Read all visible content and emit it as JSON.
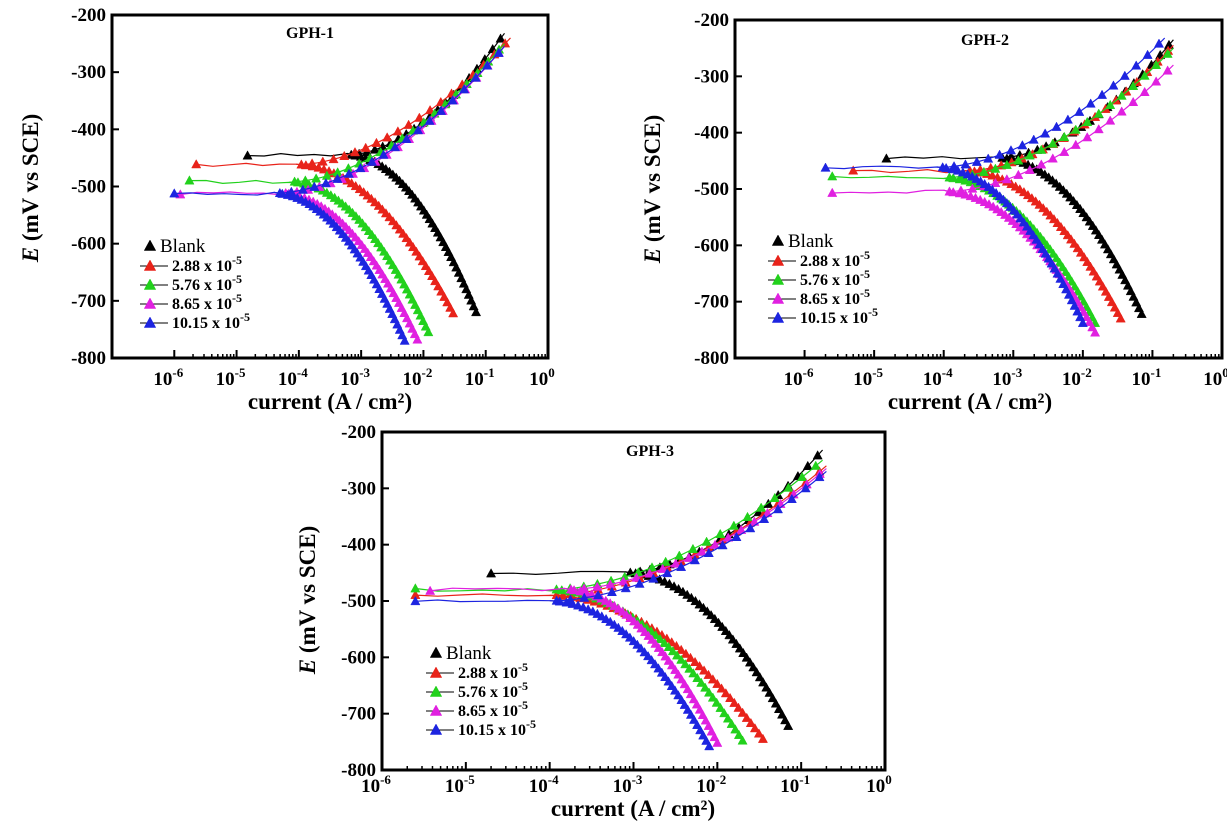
{
  "chart_data": [
    {
      "type": "line",
      "title": "GPH-1",
      "xlabel": "current (A / cm²)",
      "ylabel": "E (mV vs SCE)",
      "xscale": "log",
      "xlim": [
        1e-07,
        1
      ],
      "ylim": [
        -800,
        -200
      ],
      "xtick_labels": [
        "10-6",
        "10-5",
        "10-4",
        "10-3",
        "10-2",
        "10-1",
        "10 0"
      ],
      "ytick_labels": [
        "-200",
        "-300",
        "-400",
        "-500",
        "-600",
        "-700",
        "-800"
      ],
      "legend_position": "lower-left",
      "series": [
        {
          "name": "Blank",
          "color": "#000000",
          "Ecorr": -445,
          "icorr": 0.0006,
          "cath_end": [
            0.07,
            -720
          ],
          "anod_end": [
            0.2,
            -232
          ]
        },
        {
          "name": "2.88 x 10-5",
          "color": "#e8231a",
          "Ecorr": -462,
          "icorr": 9e-05,
          "cath_end": [
            0.03,
            -722
          ],
          "anod_end": [
            0.25,
            -240
          ]
        },
        {
          "name": "5.76 x 10-5",
          "color": "#22d11c",
          "Ecorr": -492,
          "icorr": 7e-05,
          "cath_end": [
            0.012,
            -755
          ],
          "anod_end": [
            0.2,
            -250
          ]
        },
        {
          "name": "8.65 x 10-5",
          "color": "#e020e0",
          "Ecorr": -512,
          "icorr": 5e-05,
          "cath_end": [
            0.008,
            -768
          ],
          "anod_end": [
            0.2,
            -255
          ]
        },
        {
          "name": "10.15 x 10-5",
          "color": "#1d24e0",
          "Ecorr": -512,
          "icorr": 4e-05,
          "cath_end": [
            0.005,
            -770
          ],
          "anod_end": [
            0.2,
            -255
          ]
        }
      ]
    },
    {
      "type": "line",
      "title": "GPH-2",
      "xlabel": "current (A / cm²)",
      "ylabel": "E (mV vs SCE)",
      "xscale": "log",
      "xlim": [
        1e-07,
        1
      ],
      "ylim": [
        -800,
        -200
      ],
      "xtick_labels": [
        "10-6",
        "10-5",
        "10-4",
        "10-3",
        "10-2",
        "10-1",
        "10 0"
      ],
      "ytick_labels": [
        "-200",
        "-300",
        "-400",
        "-500",
        "-600",
        "-700",
        "-800"
      ],
      "legend_position": "lower-left",
      "series": [
        {
          "name": "Blank",
          "color": "#000000",
          "Ecorr": -445,
          "icorr": 0.0006,
          "cath_end": [
            0.07,
            -722
          ],
          "anod_end": [
            0.2,
            -235
          ]
        },
        {
          "name": "2.88 x 10-5",
          "color": "#e8231a",
          "Ecorr": -468,
          "icorr": 0.0002,
          "cath_end": [
            0.035,
            -730
          ],
          "anod_end": [
            0.2,
            -245
          ]
        },
        {
          "name": "5.76 x 10-5",
          "color": "#22d11c",
          "Ecorr": -480,
          "icorr": 0.0001,
          "cath_end": [
            0.015,
            -738
          ],
          "anod_end": [
            0.2,
            -250
          ]
        },
        {
          "name": "8.65 x 10-5",
          "color": "#e020e0",
          "Ecorr": -505,
          "icorr": 0.0001,
          "cath_end": [
            0.015,
            -755
          ],
          "anod_end": [
            0.2,
            -280
          ]
        },
        {
          "name": "10.15 x 10-5",
          "color": "#1d24e0",
          "Ecorr": -462,
          "icorr": 8e-05,
          "cath_end": [
            0.01,
            -738
          ],
          "anod_end": [
            0.15,
            -232
          ]
        }
      ]
    },
    {
      "type": "line",
      "title": "GPH-3",
      "xlabel": "current (A / cm²)",
      "ylabel": "E (mV vs SCE)",
      "xscale": "log",
      "xlim": [
        1e-06,
        1
      ],
      "ylim": [
        -800,
        -200
      ],
      "xtick_labels": [
        "10-6",
        "10-5",
        "10-4",
        "10-3",
        "10-2",
        "10-1",
        "10 0"
      ],
      "ytick_labels": [
        "-200",
        "-300",
        "-400",
        "-500",
        "-600",
        "-700",
        "-800"
      ],
      "legend_position": "lower-left",
      "series": [
        {
          "name": "Blank",
          "color": "#000000",
          "Ecorr": -450,
          "icorr": 0.0008,
          "cath_end": [
            0.07,
            -722
          ],
          "anod_end": [
            0.18,
            -232
          ]
        },
        {
          "name": "2.88 x 10-5",
          "color": "#e8231a",
          "Ecorr": -490,
          "icorr": 0.0001,
          "cath_end": [
            0.035,
            -745
          ],
          "anod_end": [
            0.2,
            -260
          ]
        },
        {
          "name": "5.76 x 10-5",
          "color": "#22d11c",
          "Ecorr": -480,
          "icorr": 0.0001,
          "cath_end": [
            0.02,
            -748
          ],
          "anod_end": [
            0.18,
            -250
          ]
        },
        {
          "name": "8.65 x 10-5",
          "color": "#e020e0",
          "Ecorr": -480,
          "icorr": 0.00015,
          "cath_end": [
            0.01,
            -752
          ],
          "anod_end": [
            0.2,
            -265
          ]
        },
        {
          "name": "10.15 x 10-5",
          "color": "#1d24e0",
          "Ecorr": -500,
          "icorr": 0.0001,
          "cath_end": [
            0.008,
            -758
          ],
          "anod_end": [
            0.2,
            -270
          ]
        }
      ]
    }
  ]
}
